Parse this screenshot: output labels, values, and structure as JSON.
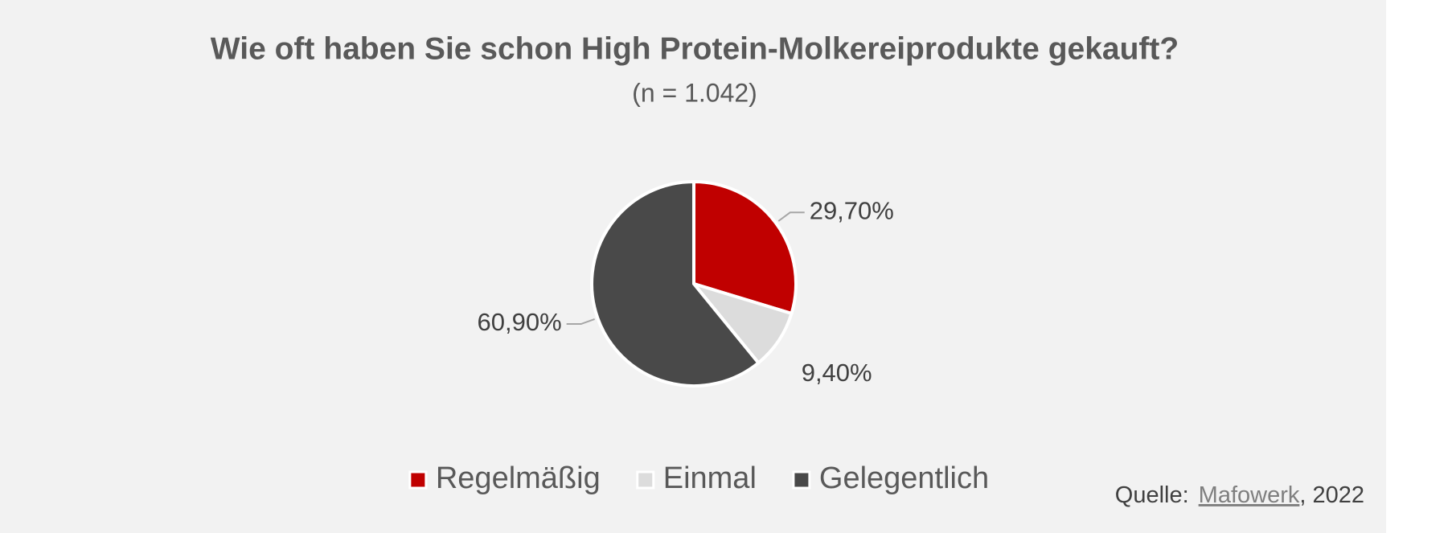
{
  "chart_data": {
    "type": "pie",
    "title": "Wie oft haben Sie schon High Protein-Molkereiprodukte gekauft?",
    "subtitle": "(n = 1.042)",
    "categories": [
      "Regelmäßig",
      "Einmal",
      "Gelegentlich"
    ],
    "values": [
      29.7,
      9.4,
      60.9
    ],
    "value_labels": [
      "29,70%",
      "9,40%",
      "60,90%"
    ],
    "colors": [
      "#c00000",
      "#dcdcdc",
      "#494949"
    ],
    "legend": "bottom"
  },
  "source": {
    "prefix": "Quelle:",
    "link": "Mafowerk",
    "suffix": ", 2022"
  }
}
